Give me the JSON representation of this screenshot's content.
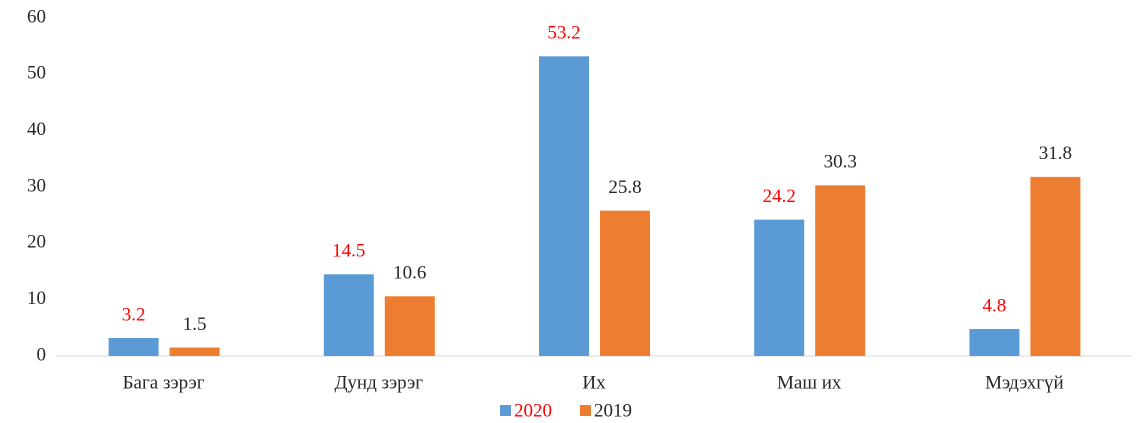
{
  "chart_data": {
    "type": "bar",
    "categories": [
      "Бага зэрэг",
      "Дунд зэрэг",
      "Их",
      "Маш их",
      "Мэдэхгүй"
    ],
    "series": [
      {
        "name": "2020",
        "color": "#5b9bd5",
        "label_color": "#ff0000",
        "values": [
          3.2,
          14.5,
          53.2,
          24.2,
          4.8
        ]
      },
      {
        "name": "2019",
        "color": "#ed7d31",
        "label_color": "#262626",
        "values": [
          1.5,
          10.6,
          25.8,
          30.3,
          31.8
        ]
      }
    ],
    "ylim": [
      0,
      60
    ],
    "yticks": [
      0,
      10,
      20,
      30,
      40,
      50,
      60
    ],
    "grid": false,
    "legend": "bottom"
  }
}
